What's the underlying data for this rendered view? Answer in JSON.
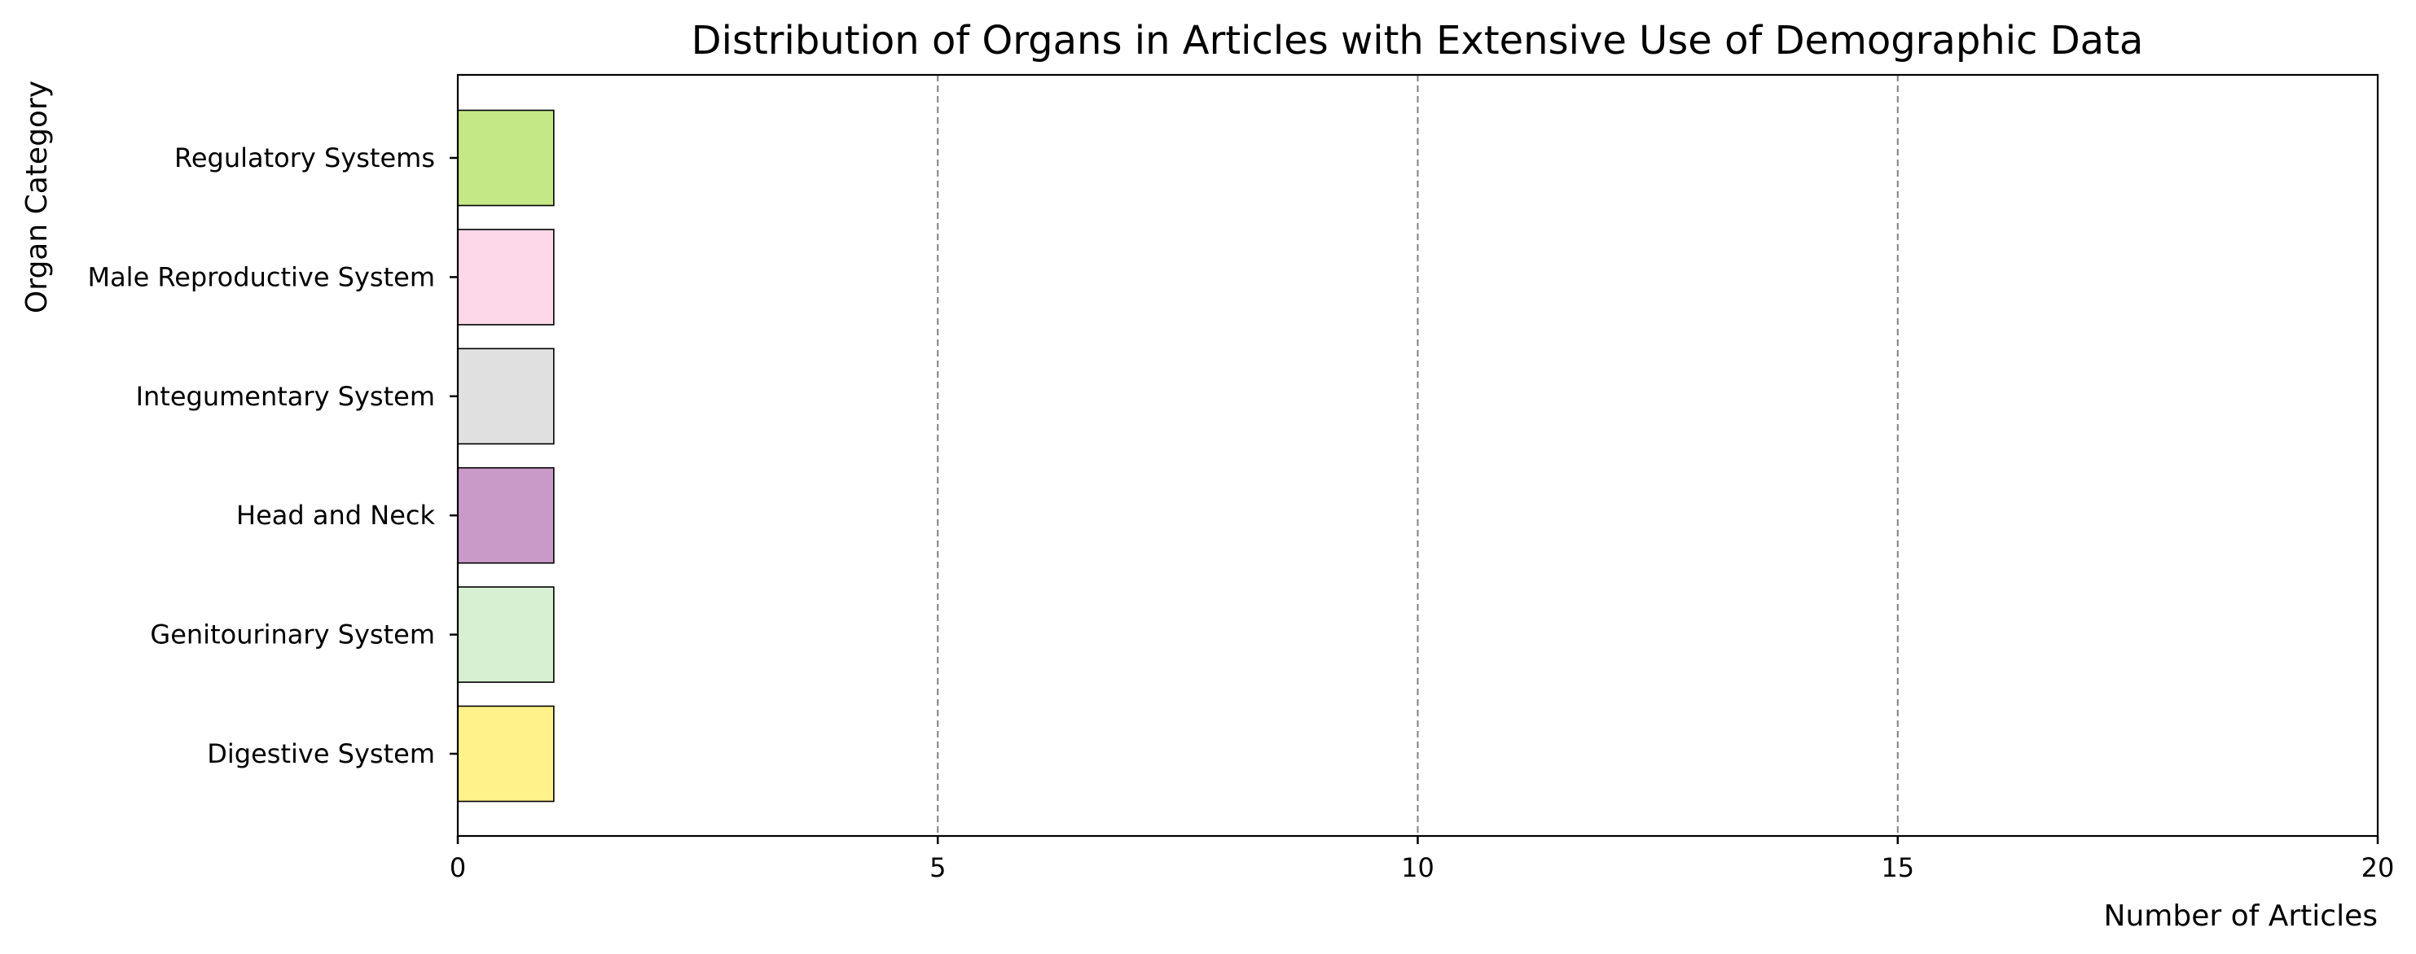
{
  "chart_data": {
    "type": "bar",
    "orientation": "horizontal",
    "title": "Distribution of Organs in Articles with Extensive Use of Demographic Data",
    "xlabel": "Number of Articles",
    "ylabel": "Organ Category",
    "categories": [
      "Digestive System",
      "Genitourinary System",
      "Head and Neck",
      "Integumentary System",
      "Male Reproductive System",
      "Regulatory Systems"
    ],
    "values": [
      1,
      1,
      1,
      1,
      1,
      1
    ],
    "colors": [
      "#fff28a",
      "#d8f0d2",
      "#c99ac8",
      "#e0e0e0",
      "#fdd8e9",
      "#c5e886"
    ],
    "xlim": [
      0,
      20
    ],
    "xticks": [
      0,
      5,
      10,
      15,
      20
    ],
    "grid": "x-dashed",
    "legend": "none"
  }
}
